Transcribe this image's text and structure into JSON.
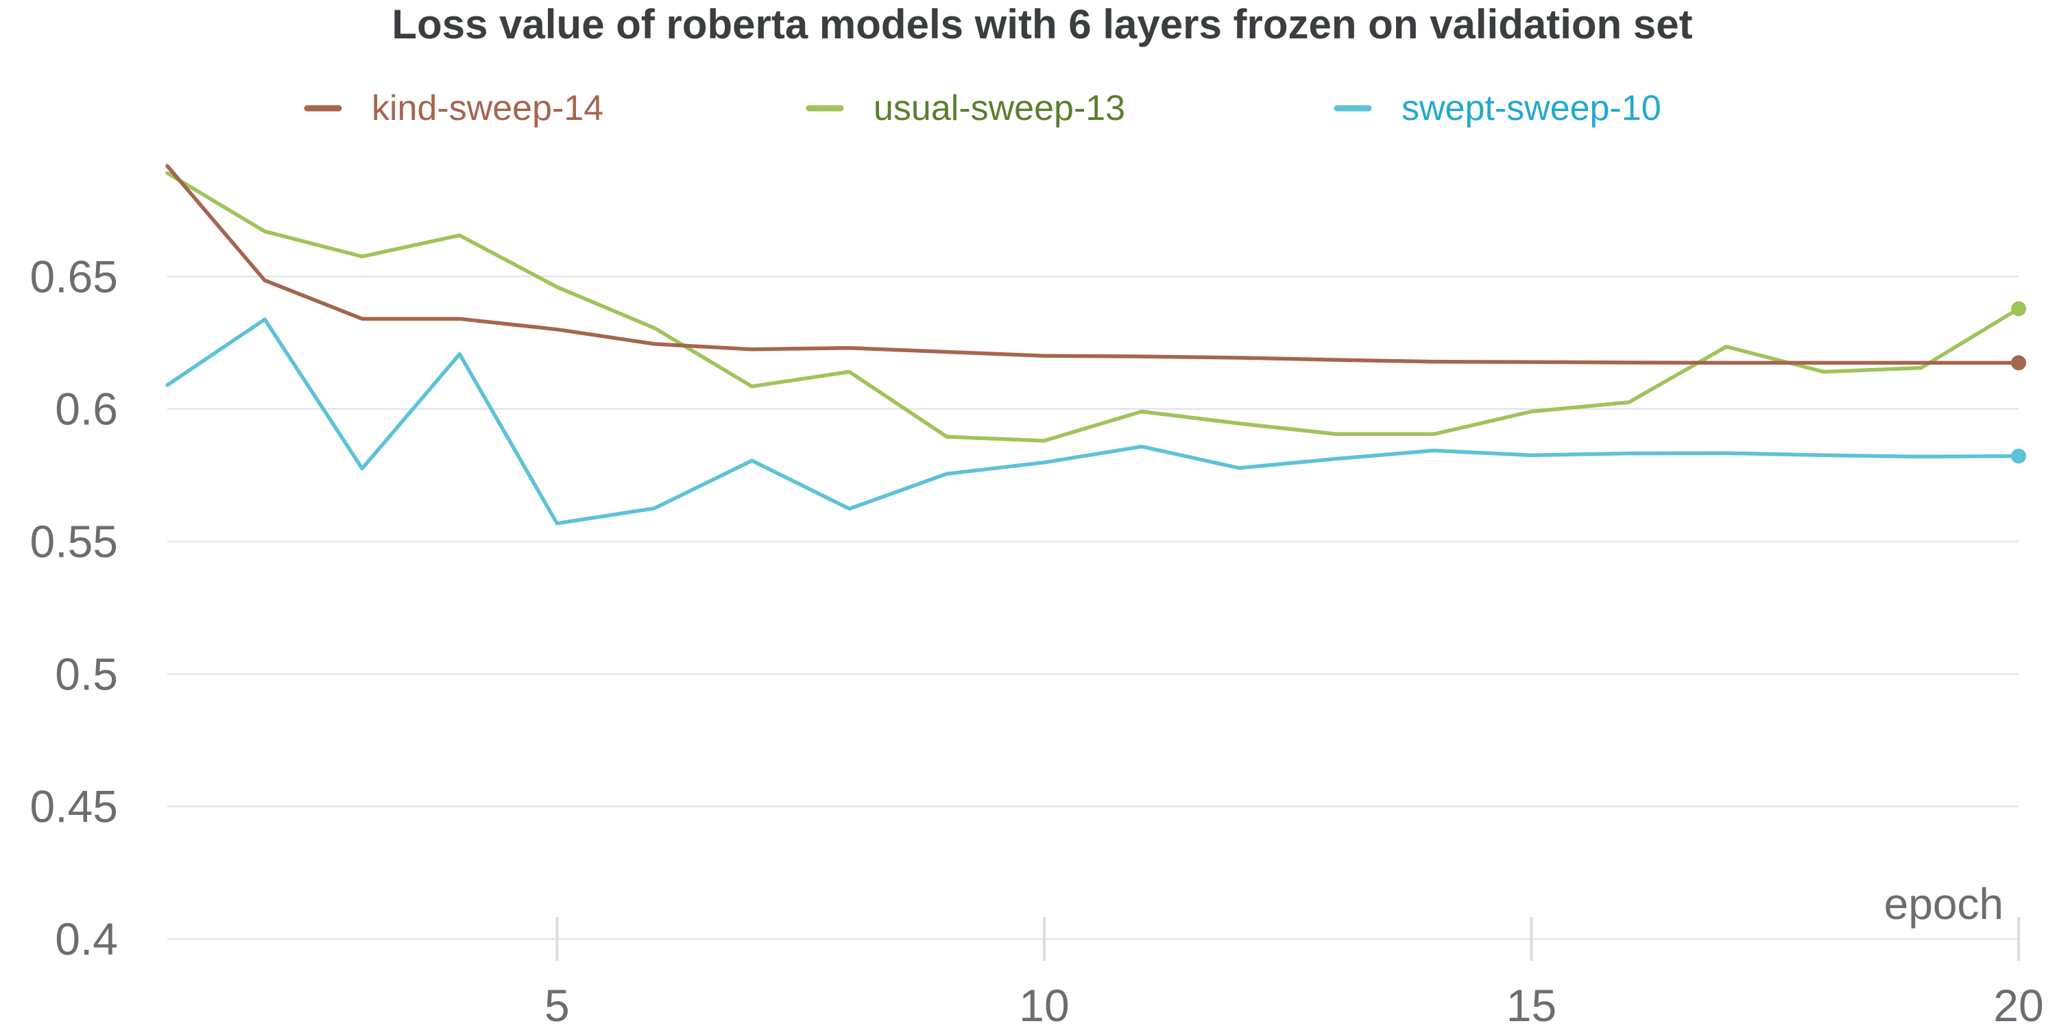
{
  "chart_data": {
    "type": "line",
    "title": "Loss value of roberta models with 6 layers frozen on validation set",
    "xlabel": "epoch",
    "ylabel": "",
    "xlim": [
      1,
      20
    ],
    "ylim": [
      0.4,
      0.7
    ],
    "x_ticks": [
      5,
      10,
      15,
      20
    ],
    "y_ticks": [
      0.4,
      0.45,
      0.5,
      0.55,
      0.6,
      0.65
    ],
    "y_tick_labels": [
      "0.4",
      "0.45",
      "0.5",
      "0.55",
      "0.6",
      "0.65"
    ],
    "grid": "horizontal",
    "legend_position": "top",
    "x": [
      1,
      2,
      3,
      4,
      5,
      6,
      7,
      8,
      9,
      10,
      11,
      12,
      13,
      14,
      15,
      16,
      17,
      18,
      19,
      20
    ],
    "series": [
      {
        "name": "kind-sweep-14",
        "line_color": "#a5654e",
        "label_color": "#a5654e",
        "values": [
          0.6917,
          0.6485,
          0.634,
          0.634,
          0.63,
          0.6245,
          0.6225,
          0.623,
          0.6215,
          0.62,
          0.6198,
          0.6193,
          0.6185,
          0.6178,
          0.6177,
          0.6175,
          0.6174,
          0.6174,
          0.6174,
          0.6174
        ]
      },
      {
        "name": "usual-sweep-13",
        "line_color": "#9ec45a",
        "label_color": "#5a7f2c",
        "values": [
          0.689,
          0.667,
          0.6575,
          0.6655,
          0.646,
          0.6305,
          0.6085,
          0.614,
          0.5895,
          0.588,
          0.599,
          0.5945,
          0.5905,
          0.5905,
          0.599,
          0.6025,
          0.6235,
          0.614,
          0.6155,
          0.6378
        ]
      },
      {
        "name": "swept-sweep-10",
        "line_color": "#5cc2d8",
        "label_color": "#23a9cf",
        "values": [
          0.609,
          0.6338,
          0.5775,
          0.6207,
          0.5568,
          0.5625,
          0.5805,
          0.5623,
          0.5755,
          0.5798,
          0.5858,
          0.5777,
          0.5812,
          0.5843,
          0.5825,
          0.5832,
          0.5833,
          0.5825,
          0.582,
          0.5822
        ]
      }
    ]
  }
}
